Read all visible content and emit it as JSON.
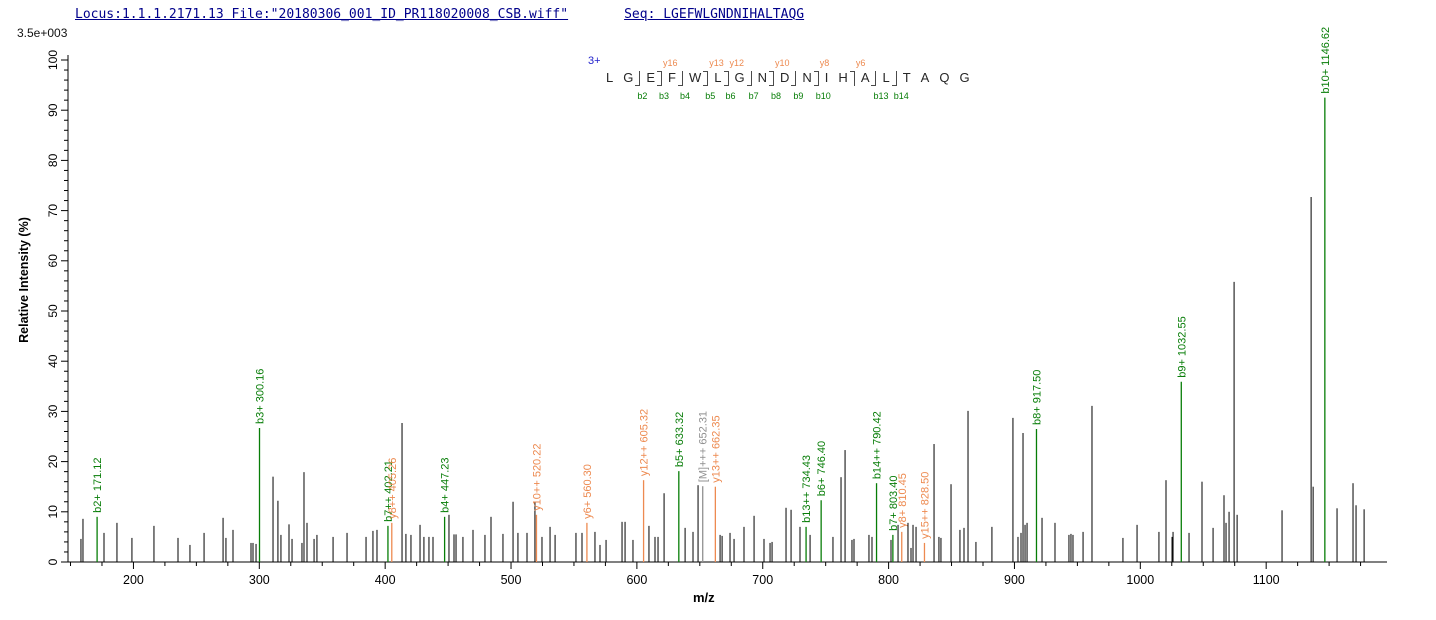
{
  "header": {
    "locus_file": "Locus:1.1.1.2171.13 File:\"20180306_001_ID_PR118020008_CSB.wiff\"",
    "seq_text": "Seq: LGEFWLGNDNIHALTAQG"
  },
  "scale_note": "3.5e+003",
  "peptide": {
    "charge_label": "3+",
    "residues": [
      "L",
      "G",
      "E",
      "F",
      "W",
      "L",
      "G",
      "N",
      "D",
      "N",
      "I",
      "H",
      "A",
      "L",
      "T",
      "A",
      "Q",
      "G"
    ],
    "cleavages": [
      {
        "after": 2,
        "b": "2"
      },
      {
        "after": 3,
        "b": "3",
        "y": "16"
      },
      {
        "after": 4,
        "b": "4"
      },
      {
        "after": 5,
        "b": "5",
        "y": "13"
      },
      {
        "after": 6,
        "b": "6",
        "y": "12"
      },
      {
        "after": 7,
        "b": "7"
      },
      {
        "after": 8,
        "b": "8",
        "y": "10"
      },
      {
        "after": 9,
        "b": "9"
      },
      {
        "after": 10,
        "b": "10",
        "y": "8"
      },
      {
        "after": 12,
        "y": "6"
      },
      {
        "after": 13,
        "b": "13"
      },
      {
        "after": 14,
        "b": "14"
      }
    ]
  },
  "colors": {
    "b_ion": "#077d07",
    "y_ion": "#ed8a50",
    "precursor": "#909090",
    "peak": "#000000",
    "header_text": "#00008b",
    "charge": "#2222cc"
  },
  "chart_data": {
    "type": "bar",
    "kind": "MS/MS peptide fragment ion spectrum",
    "title": "Locus:1.1.1.2171.13 20180306_001_ID_PR118020008_CSB.wiff LGEFWLGNDNIHALTAQG 3+",
    "xlabel": "m/z",
    "ylabel": "Relative  Intensity (%)",
    "y_scale_note": "3.5e+003",
    "xlim": [
      148,
      1196
    ],
    "ylim": [
      0,
      100
    ],
    "x_major_ticks": [
      200,
      300,
      400,
      500,
      600,
      700,
      800,
      900,
      1000,
      1100
    ],
    "x_minor_step": 25,
    "y_major_step": 10,
    "y_minor_step": 2,
    "grid": false,
    "legend": "none",
    "peaks": [
      [
        158.3,
        4.6
      ],
      [
        159.9,
        8.6
      ],
      [
        171.12,
        9.0,
        "b2+ 171.12",
        "b"
      ],
      [
        176.6,
        5.8
      ],
      [
        186.9,
        7.8
      ],
      [
        198.8,
        4.8
      ],
      [
        216.3,
        7.2
      ],
      [
        235.4,
        4.8
      ],
      [
        244.9,
        3.4
      ],
      [
        256.1,
        5.8
      ],
      [
        271.2,
        8.8
      ],
      [
        273.5,
        4.8
      ],
      [
        279.1,
        6.4
      ],
      [
        293.4,
        3.8
      ],
      [
        295.0,
        3.8
      ],
      [
        297.4,
        3.6
      ],
      [
        300.16,
        26.7,
        "b3+ 300.16",
        "b"
      ],
      [
        310.9,
        17.0
      ],
      [
        314.8,
        12.2
      ],
      [
        317.2,
        5.4
      ],
      [
        323.6,
        7.5
      ],
      [
        326.0,
        4.6
      ],
      [
        333.9,
        3.8
      ],
      [
        335.5,
        17.9
      ],
      [
        337.9,
        7.8
      ],
      [
        343.5,
        4.6
      ],
      [
        345.8,
        5.4
      ],
      [
        358.6,
        5.0
      ],
      [
        369.7,
        5.8
      ],
      [
        384.8,
        5.0
      ],
      [
        390.3,
        6.2
      ],
      [
        393.5,
        6.4
      ],
      [
        402.21,
        7.2,
        "b7++ 402.21",
        "b"
      ],
      [
        405.26,
        7.8,
        "y8++ 405.26",
        "y"
      ],
      [
        413.4,
        27.7
      ],
      [
        416.5,
        5.6
      ],
      [
        420.5,
        5.4
      ],
      [
        427.7,
        7.4
      ],
      [
        430.8,
        5.0
      ],
      [
        434.8,
        5.0
      ],
      [
        438.0,
        5.0
      ],
      [
        447.23,
        9.0,
        "b4+ 447.23",
        "b"
      ],
      [
        450.7,
        9.4
      ],
      [
        454.7,
        5.5
      ],
      [
        456.3,
        5.5
      ],
      [
        461.8,
        5.0
      ],
      [
        469.8,
        6.4
      ],
      [
        479.3,
        5.4
      ],
      [
        484.1,
        9.0
      ],
      [
        493.6,
        5.6
      ],
      [
        501.6,
        12.0
      ],
      [
        505.5,
        5.8
      ],
      [
        512.7,
        5.8
      ],
      [
        519.0,
        12.0
      ],
      [
        520.22,
        9.4,
        "y10++ 520.22",
        "y"
      ],
      [
        524.6,
        5.0
      ],
      [
        531.0,
        7.0
      ],
      [
        535.0,
        5.4
      ],
      [
        551.6,
        5.8
      ],
      [
        556.4,
        5.8
      ],
      [
        560.3,
        7.8,
        "y6+ 560.30",
        "y"
      ],
      [
        566.7,
        6.0
      ],
      [
        570.7,
        3.4
      ],
      [
        575.5,
        4.4
      ],
      [
        588.2,
        8.0
      ],
      [
        590.6,
        8.0
      ],
      [
        596.9,
        4.4
      ],
      [
        605.32,
        16.3,
        "y12++ 605.32",
        "y"
      ],
      [
        609.6,
        7.2
      ],
      [
        614.4,
        5.0
      ],
      [
        616.8,
        5.0
      ],
      [
        621.6,
        13.7
      ],
      [
        633.32,
        18.1,
        "b5+ 633.32",
        "b"
      ],
      [
        638.3,
        6.8
      ],
      [
        644.6,
        6.0
      ],
      [
        648.6,
        15.3
      ],
      [
        652.31,
        15.1,
        "[M]+++ 652.31",
        "M"
      ],
      [
        662.35,
        15.0,
        "y13++ 662.35",
        "y"
      ],
      [
        666.1,
        5.4
      ],
      [
        667.7,
        5.2
      ],
      [
        674.0,
        5.8
      ],
      [
        677.2,
        4.6
      ],
      [
        685.1,
        7.0
      ],
      [
        693.1,
        9.2
      ],
      [
        701.0,
        4.6
      ],
      [
        705.8,
        3.8
      ],
      [
        707.4,
        4.0
      ],
      [
        718.5,
        10.8
      ],
      [
        722.5,
        10.4
      ],
      [
        729.6,
        7.0
      ],
      [
        734.43,
        7.0,
        "b13++ 734.43",
        "b"
      ],
      [
        737.6,
        5.4
      ],
      [
        746.4,
        12.3,
        "b6+ 746.40",
        "b"
      ],
      [
        755.8,
        5.0
      ],
      [
        762.2,
        16.9
      ],
      [
        765.4,
        22.3
      ],
      [
        770.9,
        4.4
      ],
      [
        772.5,
        4.6
      ],
      [
        784.4,
        5.4
      ],
      [
        786.8,
        5.0
      ],
      [
        790.42,
        15.7,
        "b14++ 790.42",
        "b"
      ],
      [
        801.9,
        4.4
      ],
      [
        803.4,
        5.4,
        "b7+ 803.40",
        "b"
      ],
      [
        807.5,
        7.4
      ],
      [
        810.45,
        6.0,
        "y8+ 810.45",
        "y"
      ],
      [
        815.4,
        7.8
      ],
      [
        817.8,
        2.8
      ],
      [
        819.4,
        7.4
      ],
      [
        821.8,
        7.0
      ],
      [
        828.5,
        3.8,
        "y15++ 828.50",
        "y"
      ],
      [
        836.1,
        23.5
      ],
      [
        840.0,
        5.0
      ],
      [
        841.6,
        4.8
      ],
      [
        849.6,
        15.5
      ],
      [
        856.7,
        6.4
      ],
      [
        859.9,
        6.8
      ],
      [
        863.1,
        30.1
      ],
      [
        869.4,
        4.0
      ],
      [
        882.1,
        7.0
      ],
      [
        898.8,
        28.7
      ],
      [
        902.8,
        5.0
      ],
      [
        905.2,
        5.8
      ],
      [
        906.8,
        25.7
      ],
      [
        908.4,
        7.4
      ],
      [
        910.0,
        7.8
      ],
      [
        917.5,
        26.5,
        "b8+ 917.50",
        "b"
      ],
      [
        921.9,
        8.8
      ],
      [
        932.2,
        7.8
      ],
      [
        943.3,
        5.4
      ],
      [
        944.9,
        5.6
      ],
      [
        946.5,
        5.4
      ],
      [
        954.5,
        6.0
      ],
      [
        961.6,
        31.1
      ],
      [
        986.2,
        4.8
      ],
      [
        997.4,
        7.4
      ],
      [
        1014.8,
        6.0
      ],
      [
        1020.4,
        16.3
      ],
      [
        1025.2,
        5.0
      ],
      [
        1026.0,
        6.0
      ],
      [
        1032.55,
        35.9,
        "b9+ 1032.55",
        "b"
      ],
      [
        1038.7,
        5.8
      ],
      [
        1049.0,
        16.0
      ],
      [
        1057.8,
        6.8
      ],
      [
        1066.5,
        13.3
      ],
      [
        1068.1,
        7.8
      ],
      [
        1070.5,
        10.0
      ],
      [
        1074.5,
        55.8
      ],
      [
        1076.9,
        9.4
      ],
      [
        1112.6,
        10.3
      ],
      [
        1135.7,
        72.7
      ],
      [
        1137.3,
        15.0
      ],
      [
        1146.62,
        92.5,
        "b10+ 1146.62",
        "b"
      ],
      [
        1156.3,
        10.7
      ],
      [
        1169.0,
        15.7
      ],
      [
        1171.4,
        11.3
      ],
      [
        1177.8,
        10.5
      ]
    ]
  }
}
